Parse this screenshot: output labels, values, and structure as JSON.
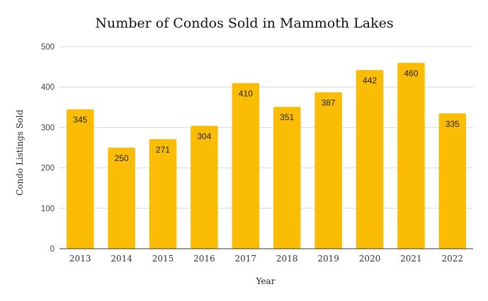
{
  "chart_data": {
    "type": "bar",
    "title": "Number of Condos Sold in Mammoth Lakes",
    "xlabel": "Year",
    "ylabel": "Condo Listings Sold",
    "categories": [
      "2013",
      "2014",
      "2015",
      "2016",
      "2017",
      "2018",
      "2019",
      "2020",
      "2021",
      "2022"
    ],
    "values": [
      345,
      250,
      271,
      304,
      410,
      351,
      387,
      442,
      460,
      335
    ],
    "ylim": [
      0,
      500
    ],
    "yticks": [
      0,
      100,
      200,
      300,
      400,
      500
    ],
    "grid": true,
    "legend": "none",
    "bar_color": "#FBBC04",
    "data_labels": true
  }
}
